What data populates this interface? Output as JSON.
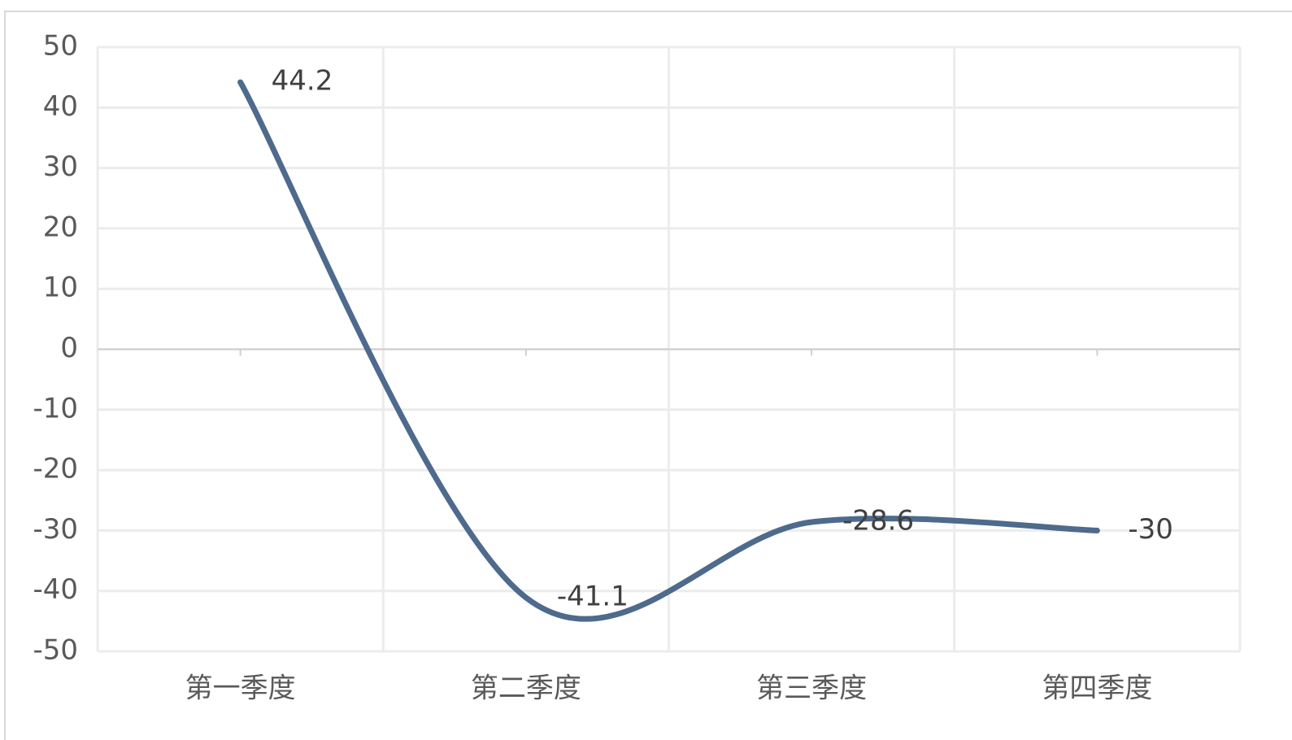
{
  "chart_data": {
    "type": "line",
    "categories": [
      "第一季度",
      "第二季度",
      "第三季度",
      "第四季度"
    ],
    "values": [
      44.2,
      -41.1,
      -28.6,
      -30
    ],
    "color": "#4e6a8c",
    "smooth": true,
    "ylim": [
      -50,
      50
    ],
    "yticks": [
      -50,
      -40,
      -30,
      -20,
      -10,
      0,
      10,
      20,
      30,
      40,
      50
    ],
    "grid": true
  }
}
